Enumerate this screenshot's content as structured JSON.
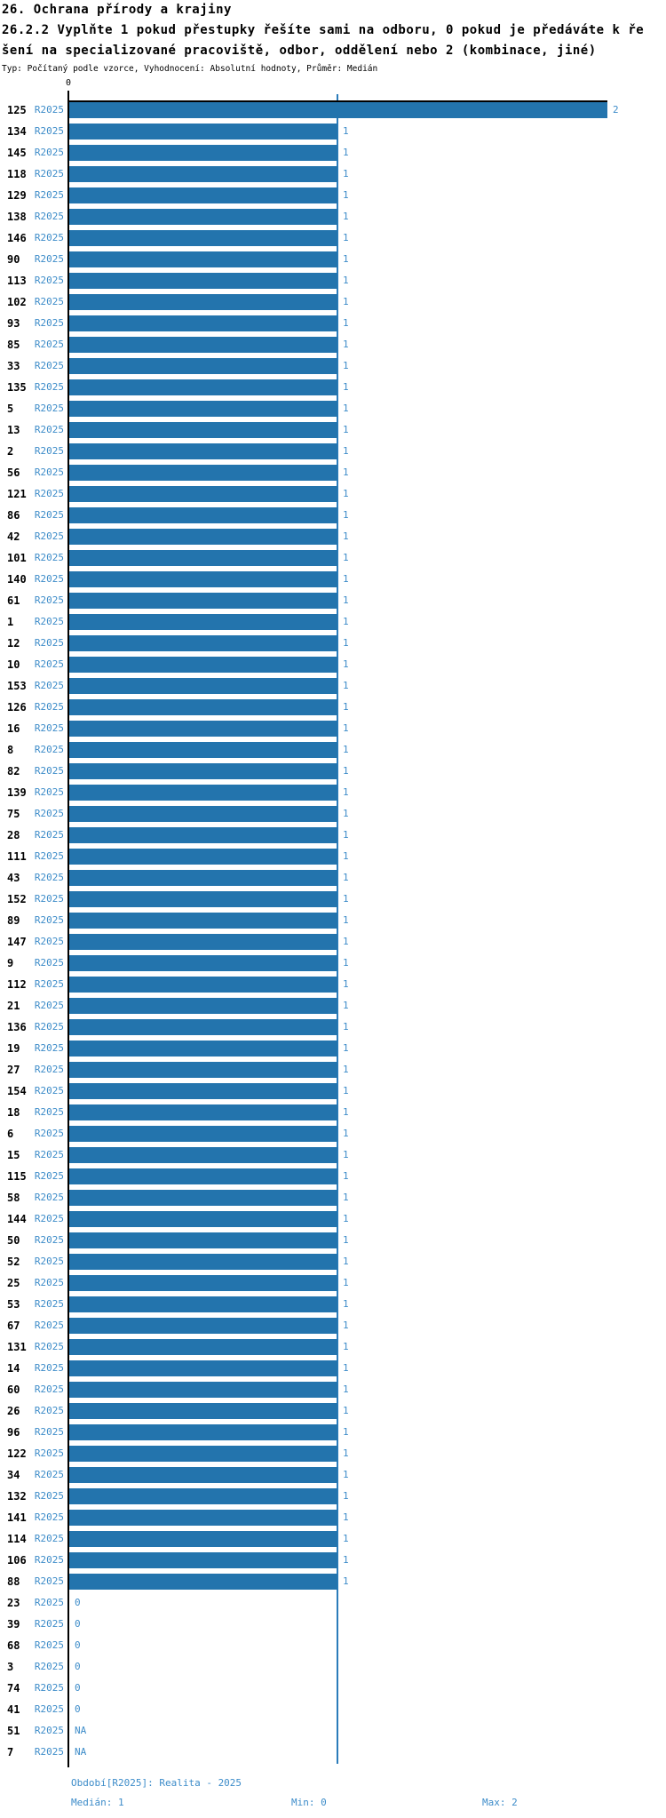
{
  "header": {
    "title": "26. Ochrana přírody a krajiny",
    "subtitle_line1": "26.2.2 Vyplňte 1 pokud přestupky řešíte sami na odboru, 0 pokud je předáváte k ře",
    "subtitle_line2": "šení na specializované pracoviště, odbor, oddělení nebo 2 (kombinace, jiné)",
    "meta": "Typ: Počítaný podle vzorce, Vyhodnocení: Absolutní hodnoty, Průměr: Medián"
  },
  "chart_data": {
    "type": "bar",
    "orientation": "horizontal",
    "title": "26.2.2 Vyplňte 1 pokud přestupky řešíte sami na odboru, 0 pokud je předáváte k řešení na specializované pracoviště, odbor, oddělení nebo 2 (kombinace, jiné)",
    "series_label": "R2025",
    "axis": {
      "min": 0,
      "max": 2,
      "origin_label": "0",
      "gridline_value": 1
    },
    "stats": {
      "median": 1,
      "min": 0,
      "max": 2
    },
    "na_label": "NA",
    "rows": [
      {
        "id": "125",
        "value": 2
      },
      {
        "id": "134",
        "value": 1
      },
      {
        "id": "145",
        "value": 1
      },
      {
        "id": "118",
        "value": 1
      },
      {
        "id": "129",
        "value": 1
      },
      {
        "id": "138",
        "value": 1
      },
      {
        "id": "146",
        "value": 1
      },
      {
        "id": "90",
        "value": 1
      },
      {
        "id": "113",
        "value": 1
      },
      {
        "id": "102",
        "value": 1
      },
      {
        "id": "93",
        "value": 1
      },
      {
        "id": "85",
        "value": 1
      },
      {
        "id": "33",
        "value": 1
      },
      {
        "id": "135",
        "value": 1
      },
      {
        "id": "5",
        "value": 1
      },
      {
        "id": "13",
        "value": 1
      },
      {
        "id": "2",
        "value": 1
      },
      {
        "id": "56",
        "value": 1
      },
      {
        "id": "121",
        "value": 1
      },
      {
        "id": "86",
        "value": 1
      },
      {
        "id": "42",
        "value": 1
      },
      {
        "id": "101",
        "value": 1
      },
      {
        "id": "140",
        "value": 1
      },
      {
        "id": "61",
        "value": 1
      },
      {
        "id": "1",
        "value": 1
      },
      {
        "id": "12",
        "value": 1
      },
      {
        "id": "10",
        "value": 1
      },
      {
        "id": "153",
        "value": 1
      },
      {
        "id": "126",
        "value": 1
      },
      {
        "id": "16",
        "value": 1
      },
      {
        "id": "8",
        "value": 1
      },
      {
        "id": "82",
        "value": 1
      },
      {
        "id": "139",
        "value": 1
      },
      {
        "id": "75",
        "value": 1
      },
      {
        "id": "28",
        "value": 1
      },
      {
        "id": "111",
        "value": 1
      },
      {
        "id": "43",
        "value": 1
      },
      {
        "id": "152",
        "value": 1
      },
      {
        "id": "89",
        "value": 1
      },
      {
        "id": "147",
        "value": 1
      },
      {
        "id": "9",
        "value": 1
      },
      {
        "id": "112",
        "value": 1
      },
      {
        "id": "21",
        "value": 1
      },
      {
        "id": "136",
        "value": 1
      },
      {
        "id": "19",
        "value": 1
      },
      {
        "id": "27",
        "value": 1
      },
      {
        "id": "154",
        "value": 1
      },
      {
        "id": "18",
        "value": 1
      },
      {
        "id": "6",
        "value": 1
      },
      {
        "id": "15",
        "value": 1
      },
      {
        "id": "115",
        "value": 1
      },
      {
        "id": "58",
        "value": 1
      },
      {
        "id": "144",
        "value": 1
      },
      {
        "id": "50",
        "value": 1
      },
      {
        "id": "52",
        "value": 1
      },
      {
        "id": "25",
        "value": 1
      },
      {
        "id": "53",
        "value": 1
      },
      {
        "id": "67",
        "value": 1
      },
      {
        "id": "131",
        "value": 1
      },
      {
        "id": "14",
        "value": 1
      },
      {
        "id": "60",
        "value": 1
      },
      {
        "id": "26",
        "value": 1
      },
      {
        "id": "96",
        "value": 1
      },
      {
        "id": "122",
        "value": 1
      },
      {
        "id": "34",
        "value": 1
      },
      {
        "id": "132",
        "value": 1
      },
      {
        "id": "141",
        "value": 1
      },
      {
        "id": "114",
        "value": 1
      },
      {
        "id": "106",
        "value": 1
      },
      {
        "id": "88",
        "value": 1
      },
      {
        "id": "23",
        "value": 0
      },
      {
        "id": "39",
        "value": 0
      },
      {
        "id": "68",
        "value": 0
      },
      {
        "id": "3",
        "value": 0
      },
      {
        "id": "74",
        "value": 0
      },
      {
        "id": "41",
        "value": 0
      },
      {
        "id": "51",
        "value": "NA"
      },
      {
        "id": "7",
        "value": "NA"
      }
    ]
  },
  "footer": {
    "period": "Období[R2025]: Realita - 2025",
    "median_label": "Medián: 1",
    "min_label": "Min: 0",
    "max_label": "Max: 2"
  },
  "colors": {
    "bar": "#2374ad",
    "label_blue": "#3d8cc9",
    "gridline": "#2b7cba",
    "axis": "#000000"
  }
}
